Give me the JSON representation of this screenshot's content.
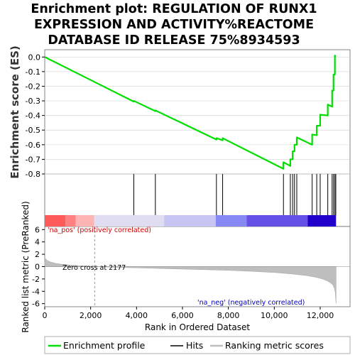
{
  "chart_data": {
    "type": "line",
    "title_lines": [
      "Enrichment plot: REGULATION OF RUNX1",
      "EXPRESSION AND ACTIVITY%REACTOME",
      "DATABASE ID RELEASE 75%8934593"
    ],
    "es_panel": {
      "ylabel": "Enrichment score (ES)",
      "ylim": [
        -0.8,
        0.05
      ],
      "yticks": [
        0.0,
        -0.1,
        -0.2,
        -0.3,
        -0.4,
        -0.5,
        -0.6,
        -0.7,
        -0.8
      ],
      "ytick_labels": [
        "0.0",
        "-0.1",
        "-0.2",
        "-0.3",
        "-0.4",
        "-0.5",
        "-0.6",
        "-0.7",
        "-0.8"
      ],
      "x": [
        0,
        3880,
        4820,
        7480,
        7750,
        10400,
        10700,
        10800,
        10880,
        10980,
        11650,
        11850,
        12000,
        12330,
        12520,
        12580,
        12640,
        12680
      ],
      "es_before": [
        0.0,
        -0.305,
        -0.37,
        -0.565,
        -0.57,
        -0.765,
        -0.745,
        -0.7,
        -0.645,
        -0.6,
        -0.6,
        -0.535,
        -0.47,
        -0.4,
        -0.34,
        -0.23,
        -0.12,
        0.005
      ],
      "es_after": [
        0.0,
        -0.3,
        -0.365,
        -0.555,
        -0.555,
        -0.72,
        -0.7,
        -0.645,
        -0.6,
        -0.55,
        -0.53,
        -0.47,
        -0.395,
        -0.325,
        -0.23,
        -0.12,
        0.01,
        0.005
      ]
    },
    "hits": [
      3880,
      4820,
      7480,
      7750,
      10400,
      10700,
      10800,
      10880,
      10980,
      11650,
      11850,
      12000,
      12330,
      12520,
      12580,
      12640,
      12680
    ],
    "metric_panel": {
      "ylabel": "Ranked list metric (PreRanked)",
      "ylim": [
        -6.5,
        6.5
      ],
      "yticks": [
        6,
        4,
        2,
        0,
        -2,
        -4,
        -6
      ],
      "ytick_labels": [
        "6",
        "4",
        "2",
        "0",
        "-2",
        "-4",
        "-6"
      ],
      "zero_cross": 2177,
      "zero_cross_label": "Zero cross at 2177",
      "pos_label": "'na_pos' (positively correlated)",
      "neg_label": "'na_neg' (negatively correlated)",
      "profile_x": [
        0,
        30,
        100,
        250,
        500,
        800,
        1200,
        1700,
        2177,
        3000,
        4000,
        5000,
        6000,
        7000,
        8000,
        9000,
        10000,
        10800,
        11400,
        11800,
        12100,
        12300,
        12450,
        12560,
        12620,
        12660,
        12690
      ],
      "profile_y": [
        1.6,
        1.3,
        1.0,
        0.75,
        0.5,
        0.35,
        0.2,
        0.08,
        0.0,
        -0.1,
        -0.2,
        -0.3,
        -0.4,
        -0.5,
        -0.6,
        -0.75,
        -0.95,
        -1.2,
        -1.45,
        -1.7,
        -2.0,
        -2.3,
        -2.6,
        -3.0,
        -3.5,
        -4.2,
        -6.0
      ]
    },
    "xaxis": {
      "label": "Rank in Ordered Dataset",
      "xlim": [
        0,
        13300
      ],
      "ticks": [
        0,
        2000,
        4000,
        6000,
        8000,
        10000,
        12000
      ],
      "tick_labels": [
        "0",
        "2,000",
        "4,000",
        "6,000",
        "8,000",
        "10,000",
        "12,000"
      ],
      "n": 12690
    },
    "colorbar": [
      {
        "from": 0,
        "to": 900,
        "color": "#ff5a5a"
      },
      {
        "from": 900,
        "to": 1350,
        "color": "#ff8080"
      },
      {
        "from": 1350,
        "to": 2150,
        "color": "#ffb4b4"
      },
      {
        "from": 2150,
        "to": 5200,
        "color": "#e0dcf2"
      },
      {
        "from": 5200,
        "to": 7450,
        "color": "#c8c4f4"
      },
      {
        "from": 7450,
        "to": 8800,
        "color": "#8888f4"
      },
      {
        "from": 8800,
        "to": 11450,
        "color": "#6650e6"
      },
      {
        "from": 11450,
        "to": 12690,
        "color": "#2200cc"
      }
    ],
    "colors": {
      "enrichment": "#00dd00",
      "hits": "#000000",
      "metric_fill": "#bebebe",
      "zero_line": "#999999"
    },
    "legend": {
      "placement": "bottom",
      "items": [
        "Enrichment profile",
        "Hits",
        "Ranking metric scores"
      ]
    }
  }
}
